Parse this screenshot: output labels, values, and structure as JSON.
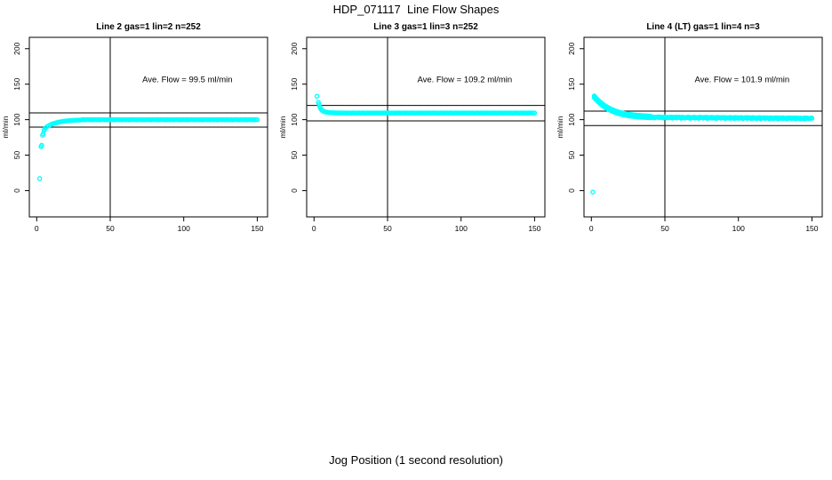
{
  "title": "HDP_071117  Line Flow Shapes",
  "xlabel": "Jog Position (1 second resolution)",
  "colors": {
    "points": "#00ffff",
    "axis": "#000000",
    "background": "#ffffff"
  },
  "chart_data": [
    {
      "type": "scatter",
      "title": "Line 2 gas=1 lin=2 n=252",
      "annotation": "Ave. Flow =  99.5  ml/min",
      "ave_flow_ml_min": 99.5,
      "ylabel": "ml/min",
      "x_ticks": [
        0,
        50,
        100,
        150
      ],
      "y_ticks": [
        0,
        50,
        100,
        150,
        200
      ],
      "xlim": [
        -5,
        157
      ],
      "ylim": [
        -37,
        216
      ],
      "ref_vline": 50,
      "ref_hlines": [
        109.5,
        89.5
      ],
      "annotation_pos": [
        102.5,
        153
      ],
      "grid": false,
      "series": [
        {
          "pairs": [
            [
              2,
              17
            ],
            [
              3,
              62
            ],
            [
              3.4,
              64
            ],
            [
              4,
              78
            ],
            [
              4.4,
              80
            ],
            [
              5,
              85
            ],
            [
              5.4,
              86.5
            ]
          ],
          "runs": [
            {
              "x0": 6,
              "step": 1,
              "y": [
                88.3,
                90,
                91.4,
                92.5,
                93.4,
                94.2,
                94.9,
                95.5,
                96,
                96.5,
                96.9,
                97.3,
                97.6,
                97.9,
                98.1,
                98.4,
                98.6,
                98.7,
                98.9,
                99,
                99.1,
                99.3,
                99.4,
                99.4,
                99.5
              ]
            },
            {
              "x0": 31,
              "step": 1,
              "y": [
                99.8,
                100.1,
                99.7,
                100,
                100.2,
                99.9,
                100,
                99.6,
                100.1,
                99.9,
                99.8,
                100.1,
                99.7,
                100,
                100.2,
                99.9,
                100,
                99.6,
                100.1,
                99.9,
                99.8,
                100.1,
                99.7,
                100,
                100.2,
                99.9,
                100,
                99.6,
                100.1,
                99.9,
                99.8,
                100.1,
                99.7,
                100,
                100.2,
                99.9,
                100,
                99.6,
                100.1,
                99.9,
                99.8,
                100.1,
                99.7,
                100,
                100.2,
                99.9,
                100,
                99.6,
                100.1,
                99.9,
                99.8,
                100.1,
                99.7,
                100,
                100.2,
                99.9,
                100,
                99.6,
                100.1,
                99.9,
                99.8,
                100.1,
                99.7,
                100,
                100.2,
                99.9,
                100,
                99.6,
                100.1,
                99.9,
                99.8,
                100.1,
                99.7,
                100,
                100.2,
                99.9,
                100,
                99.6,
                100.1,
                99.9,
                99.8,
                100.1,
                99.7,
                100,
                100.2,
                99.9,
                100,
                99.6,
                100.1,
                99.9,
                99.8,
                100.1,
                99.7,
                100,
                100.2,
                99.9,
                100,
                99.6,
                100.1,
                99.9,
                99.8,
                100.1,
                99.7,
                100,
                100.2,
                99.9,
                100,
                99.6,
                100.1,
                99.9,
                99.8,
                100.1,
                99.7,
                100,
                100.2,
                99.9,
                100,
                99.6,
                100.1,
                99.9
              ]
            }
          ]
        }
      ]
    },
    {
      "type": "scatter",
      "title": "Line 3 gas=1 lin=3 n=252",
      "annotation": "Ave. Flow =  109.2  ml/min",
      "ave_flow_ml_min": 109.2,
      "ylabel": "ml/min",
      "x_ticks": [
        0,
        50,
        100,
        150
      ],
      "y_ticks": [
        0,
        50,
        100,
        150,
        200
      ],
      "xlim": [
        -5,
        157
      ],
      "ylim": [
        -37,
        216
      ],
      "ref_vline": 50,
      "ref_hlines": [
        120.1,
        98.3
      ],
      "annotation_pos": [
        102.5,
        153
      ],
      "grid": false,
      "series": [
        {
          "pairs": [
            [
              2,
              133
            ],
            [
              3,
              124.5
            ],
            [
              3.4,
              122
            ],
            [
              4,
              118
            ],
            [
              4.4,
              116
            ],
            [
              5,
              114.2
            ],
            [
              5.4,
              113.2
            ]
          ],
          "runs": [
            {
              "x0": 6,
              "step": 1,
              "y": [
                112.3,
                111.4,
                110.8,
                110.4,
                110.1,
                109.9,
                109.8,
                109.7,
                109.7,
                109.6,
                109.6,
                109.5,
                109.5,
                109.5,
                109.4
              ]
            },
            {
              "x0": 21,
              "step": 1,
              "y": [
                109.5,
                109.3,
                109.6,
                109.4,
                109.2,
                109.5,
                109.4,
                109.6,
                109.3,
                109.4,
                109.5,
                109.3,
                109.6,
                109.4,
                109.2,
                109.5,
                109.4,
                109.6,
                109.3,
                109.4,
                109.5,
                109.3,
                109.6,
                109.4,
                109.2,
                109.5,
                109.4,
                109.6,
                109.3,
                109.4,
                109.5,
                109.3,
                109.6,
                109.4,
                109.2,
                109.5,
                109.4,
                109.6,
                109.3,
                109.4,
                109.5,
                109.3,
                109.6,
                109.4,
                109.2,
                109.5,
                109.4,
                109.6,
                109.3,
                109.4,
                109.5,
                109.3,
                109.6,
                109.4,
                109.2,
                109.5,
                109.4,
                109.6,
                109.3,
                109.4,
                109.5,
                109.3,
                109.6,
                109.4,
                109.2,
                109.5,
                109.4,
                109.6,
                109.3,
                109.4,
                109.5,
                109.3,
                109.6,
                109.4,
                109.2,
                109.5,
                109.4,
                109.6,
                109.3,
                109.4,
                109.5,
                109.3,
                109.6,
                109.4,
                109.2,
                109.5,
                109.4,
                109.6,
                109.3,
                109.4,
                109.5,
                109.3,
                109.6,
                109.4,
                109.2,
                109.5,
                109.4,
                109.6,
                109.3,
                109.4,
                109.5,
                109.3,
                109.6,
                109.4,
                109.2,
                109.5,
                109.4,
                109.6,
                109.3,
                109.4,
                109.5,
                109.3,
                109.6,
                109.4,
                109.2,
                109.5,
                109.4,
                109.6,
                109.3,
                109.4,
                109.5,
                109.3,
                109.6,
                109.4,
                109.2,
                109.5,
                109.4,
                109.6,
                109.3,
                109.4
              ]
            }
          ]
        }
      ]
    },
    {
      "type": "scatter",
      "title": "Line 4 (LT) gas=1 lin=4 n=3",
      "annotation": "Ave. Flow =  101.9  ml/min",
      "ave_flow_ml_min": 101.9,
      "ylabel": "ml/min",
      "x_ticks": [
        0,
        50,
        100,
        150
      ],
      "y_ticks": [
        0,
        50,
        100,
        150,
        200
      ],
      "xlim": [
        -5,
        157
      ],
      "ylim": [
        -37,
        216
      ],
      "ref_vline": 50,
      "ref_hlines": [
        112.1,
        91.7
      ],
      "annotation_pos": [
        102.5,
        153
      ],
      "grid": false,
      "series": [
        {
          "pairs": [],
          "runs": [
            {
              "x0": 2,
              "step": 1,
              "y": [
                132,
                129.6,
                127.4,
                125.4,
                123.5,
                121.8,
                120.2,
                118.7,
                117.4,
                116.1,
                115,
                113.9,
                113,
                112.1,
                111.3,
                110.5,
                109.9,
                109.2,
                108.7,
                108.2,
                107.7,
                107.3,
                106.9,
                106.5,
                106.2,
                105.9,
                105.6,
                105.4,
                105.1,
                104.9,
                104.7,
                104.6,
                104.4,
                104.3,
                104.1,
                104,
                103.9,
                103.8
              ]
            },
            {
              "x0": 40,
              "step": 1,
              "y": [
                103.7,
                102.9,
                103.4,
                102.7,
                103.2,
                103.6,
                103.0,
                103.4,
                102.8,
                103.2,
                103.6,
                102.8,
                103.3,
                102.6,
                103.0,
                103.4,
                102.8,
                103.3,
                102.6,
                103.1,
                103.5,
                102.7,
                103.1,
                102.4,
                102.9,
                103.3,
                102.7,
                103.2,
                102.5,
                103.0,
                103.3,
                102.5,
                103.0,
                102.3,
                102.8,
                103.2,
                102.6,
                103.1,
                102.4,
                102.9,
                103.2,
                102.4,
                102.9,
                102.2,
                102.7,
                103.1,
                102.5,
                103.0,
                102.3,
                102.8,
                103.1,
                102.3,
                102.8,
                102.1,
                102.6,
                103.0,
                102.4,
                102.9,
                102.2,
                102.7,
                103.0,
                102.2,
                102.7,
                102.0,
                102.5,
                102.9,
                102.3,
                102.8,
                102.1,
                102.6,
                102.9,
                102.1,
                102.6,
                101.9,
                102.4,
                102.8,
                102.2,
                102.7,
                102.0,
                102.5,
                102.7,
                101.9,
                102.4,
                101.7,
                102.2,
                102.6,
                102.0,
                102.5,
                101.8,
                102.3,
                102.6,
                101.8,
                102.3,
                101.6,
                102.1,
                102.5,
                101.9,
                102.4,
                101.7,
                102.2,
                102.5,
                101.7,
                102.2,
                101.5,
                102.0,
                102.4,
                101.8,
                102.3,
                101.6,
                102.1,
                102.0
              ]
            }
          ]
        },
        {
          "pairs": [],
          "runs": [
            {
              "x0": 2,
              "step": 1,
              "y": [
                133.4,
                131,
                128.8,
                126.8,
                124.9,
                123.2,
                121.6,
                120.1,
                118.8,
                117.5,
                116.4,
                115.3,
                114.4,
                113.5,
                112.7,
                111.9,
                111.3,
                110.6,
                110.1,
                109.6,
                109.1,
                108.7,
                108.3,
                107.9,
                107.6,
                107.3,
                107,
                106.8,
                106.5,
                106.3,
                106.1,
                106,
                105.8,
                105.7,
                105.5,
                105.4,
                105.3,
                105.2,
                105.1
              ]
            },
            {
              "x0": 42,
              "step": 2,
              "y": [
                103.9,
                103.6,
                104.0,
                103.5,
                103.9,
                103.4,
                103.8,
                103.4,
                103.7,
                103.3,
                103.7,
                103.2,
                103.6,
                103.2,
                103.5,
                103.1,
                103.5,
                103.0,
                103.4,
                103.0,
                103.4,
                102.9,
                103.3,
                102.9,
                103.2,
                102.8,
                103.2,
                102.7,
                103.1,
                102.7,
                103.1,
                102.6,
                103.0,
                102.6,
                102.9,
                102.5,
                102.9,
                102.4,
                102.8,
                102.4,
                102.8,
                102.3,
                102.7,
                102.3,
                102.6,
                102.2,
                102.6,
                102.1,
                102.5,
                102.1,
                102.4,
                102.0,
                102.4,
                101.9,
                102.3
              ]
            }
          ]
        },
        {
          "pairs": [
            [
              1,
              -2
            ]
          ],
          "runs": [
            {
              "x0": 2,
              "step": 1,
              "y": [
                131,
                128.6,
                126.4,
                124.4,
                122.5,
                120.8,
                119.2,
                117.7,
                116.4,
                115.1,
                114,
                112.9,
                112,
                111.1,
                110.3,
                109.5,
                108.9,
                108.2,
                107.7,
                107.2,
                106.7,
                106.3,
                105.9,
                105.5,
                105.2,
                104.9,
                104.6,
                104.4,
                104.1,
                103.9,
                103.7,
                103.6,
                103.4,
                103.3,
                103.1,
                103,
                102.9,
                102.8,
                102.7
              ]
            },
            {
              "x0": 43,
              "step": 3,
              "y": [
                102.6,
                102.9,
                102.3,
                102.7,
                102.1,
                102.6,
                102.0,
                102.5,
                101.9,
                102.4,
                101.9,
                102.3,
                101.8,
                102.2,
                101.7,
                102.1,
                101.7,
                102.0,
                101.6,
                102.0,
                101.5,
                101.9,
                101.5,
                101.8,
                101.4,
                101.7,
                101.3,
                101.7,
                101.2,
                101.6,
                101.2,
                101.5,
                101.1,
                101.4,
                101.0,
                101.4
              ]
            }
          ]
        }
      ]
    }
  ]
}
